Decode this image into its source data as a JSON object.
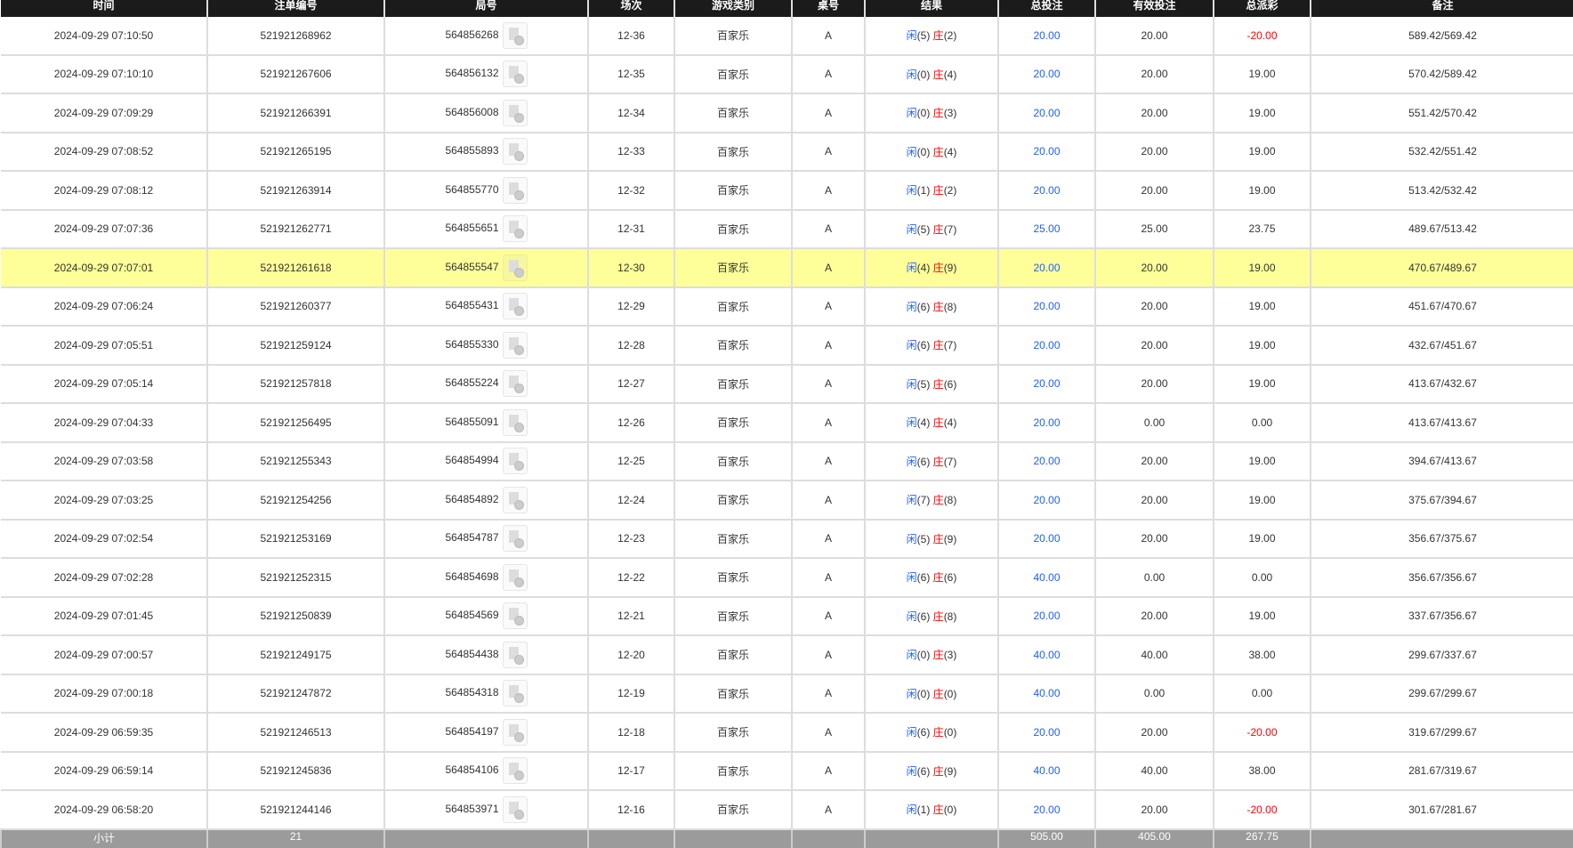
{
  "headers": [
    "时间",
    "注单编号",
    "局号",
    "场次",
    "游戏类别",
    "桌号",
    "结果",
    "总投注",
    "有效投注",
    "总派彩",
    "备注"
  ],
  "result_labels": {
    "player": "闲",
    "banker": "庄"
  },
  "colors": {
    "header_bg": "#1b1b1b",
    "highlight": "#ffff99",
    "blue": "#1f5ff5",
    "red": "#ff0000",
    "subtotal_bg": "#9b9b9b"
  },
  "rows": [
    {
      "time": "2024-09-29 07:10:50",
      "order": "521921268962",
      "game": "564856268",
      "round": "12-36",
      "type": "百家乐",
      "table": "A",
      "player": "(5)",
      "banker": "(2)",
      "bet": "20.00",
      "valid": "20.00",
      "payout": "-20.00",
      "note": "589.42/569.42"
    },
    {
      "time": "2024-09-29 07:10:10",
      "order": "521921267606",
      "game": "564856132",
      "round": "12-35",
      "type": "百家乐",
      "table": "A",
      "player": "(0)",
      "banker": "(4)",
      "bet": "20.00",
      "valid": "20.00",
      "payout": "19.00",
      "note": "570.42/589.42"
    },
    {
      "time": "2024-09-29 07:09:29",
      "order": "521921266391",
      "game": "564856008",
      "round": "12-34",
      "type": "百家乐",
      "table": "A",
      "player": "(0)",
      "banker": "(3)",
      "bet": "20.00",
      "valid": "20.00",
      "payout": "19.00",
      "note": "551.42/570.42"
    },
    {
      "time": "2024-09-29 07:08:52",
      "order": "521921265195",
      "game": "564855893",
      "round": "12-33",
      "type": "百家乐",
      "table": "A",
      "player": "(0)",
      "banker": "(4)",
      "bet": "20.00",
      "valid": "20.00",
      "payout": "19.00",
      "note": "532.42/551.42"
    },
    {
      "time": "2024-09-29 07:08:12",
      "order": "521921263914",
      "game": "564855770",
      "round": "12-32",
      "type": "百家乐",
      "table": "A",
      "player": "(1)",
      "banker": "(2)",
      "bet": "20.00",
      "valid": "20.00",
      "payout": "19.00",
      "note": "513.42/532.42"
    },
    {
      "time": "2024-09-29 07:07:36",
      "order": "521921262771",
      "game": "564855651",
      "round": "12-31",
      "type": "百家乐",
      "table": "A",
      "player": "(5)",
      "banker": "(7)",
      "bet": "25.00",
      "valid": "25.00",
      "payout": "23.75",
      "note": "489.67/513.42"
    },
    {
      "time": "2024-09-29 07:07:01",
      "order": "521921261618",
      "game": "564855547",
      "round": "12-30",
      "type": "百家乐",
      "table": "A",
      "player": "(4)",
      "banker": "(9)",
      "bet": "20.00",
      "valid": "20.00",
      "payout": "19.00",
      "note": "470.67/489.67",
      "highlighted": true
    },
    {
      "time": "2024-09-29 07:06:24",
      "order": "521921260377",
      "game": "564855431",
      "round": "12-29",
      "type": "百家乐",
      "table": "A",
      "player": "(6)",
      "banker": "(8)",
      "bet": "20.00",
      "valid": "20.00",
      "payout": "19.00",
      "note": "451.67/470.67"
    },
    {
      "time": "2024-09-29 07:05:51",
      "order": "521921259124",
      "game": "564855330",
      "round": "12-28",
      "type": "百家乐",
      "table": "A",
      "player": "(6)",
      "banker": "(7)",
      "bet": "20.00",
      "valid": "20.00",
      "payout": "19.00",
      "note": "432.67/451.67"
    },
    {
      "time": "2024-09-29 07:05:14",
      "order": "521921257818",
      "game": "564855224",
      "round": "12-27",
      "type": "百家乐",
      "table": "A",
      "player": "(5)",
      "banker": "(6)",
      "bet": "20.00",
      "valid": "20.00",
      "payout": "19.00",
      "note": "413.67/432.67"
    },
    {
      "time": "2024-09-29 07:04:33",
      "order": "521921256495",
      "game": "564855091",
      "round": "12-26",
      "type": "百家乐",
      "table": "A",
      "player": "(4)",
      "banker": "(4)",
      "bet": "20.00",
      "valid": "0.00",
      "payout": "0.00",
      "note": "413.67/413.67"
    },
    {
      "time": "2024-09-29 07:03:58",
      "order": "521921255343",
      "game": "564854994",
      "round": "12-25",
      "type": "百家乐",
      "table": "A",
      "player": "(6)",
      "banker": "(7)",
      "bet": "20.00",
      "valid": "20.00",
      "payout": "19.00",
      "note": "394.67/413.67"
    },
    {
      "time": "2024-09-29 07:03:25",
      "order": "521921254256",
      "game": "564854892",
      "round": "12-24",
      "type": "百家乐",
      "table": "A",
      "player": "(7)",
      "banker": "(8)",
      "bet": "20.00",
      "valid": "20.00",
      "payout": "19.00",
      "note": "375.67/394.67"
    },
    {
      "time": "2024-09-29 07:02:54",
      "order": "521921253169",
      "game": "564854787",
      "round": "12-23",
      "type": "百家乐",
      "table": "A",
      "player": "(5)",
      "banker": "(9)",
      "bet": "20.00",
      "valid": "20.00",
      "payout": "19.00",
      "note": "356.67/375.67"
    },
    {
      "time": "2024-09-29 07:02:28",
      "order": "521921252315",
      "game": "564854698",
      "round": "12-22",
      "type": "百家乐",
      "table": "A",
      "player": "(6)",
      "banker": "(6)",
      "bet": "40.00",
      "valid": "0.00",
      "payout": "0.00",
      "note": "356.67/356.67"
    },
    {
      "time": "2024-09-29 07:01:45",
      "order": "521921250839",
      "game": "564854569",
      "round": "12-21",
      "type": "百家乐",
      "table": "A",
      "player": "(6)",
      "banker": "(8)",
      "bet": "20.00",
      "valid": "20.00",
      "payout": "19.00",
      "note": "337.67/356.67"
    },
    {
      "time": "2024-09-29 07:00:57",
      "order": "521921249175",
      "game": "564854438",
      "round": "12-20",
      "type": "百家乐",
      "table": "A",
      "player": "(0)",
      "banker": "(3)",
      "bet": "40.00",
      "valid": "40.00",
      "payout": "38.00",
      "note": "299.67/337.67"
    },
    {
      "time": "2024-09-29 07:00:18",
      "order": "521921247872",
      "game": "564854318",
      "round": "12-19",
      "type": "百家乐",
      "table": "A",
      "player": "(0)",
      "banker": "(0)",
      "bet": "40.00",
      "valid": "0.00",
      "payout": "0.00",
      "note": "299.67/299.67"
    },
    {
      "time": "2024-09-29 06:59:35",
      "order": "521921246513",
      "game": "564854197",
      "round": "12-18",
      "type": "百家乐",
      "table": "A",
      "player": "(6)",
      "banker": "(0)",
      "bet": "20.00",
      "valid": "20.00",
      "payout": "-20.00",
      "note": "319.67/299.67"
    },
    {
      "time": "2024-09-29 06:59:14",
      "order": "521921245836",
      "game": "564854106",
      "round": "12-17",
      "type": "百家乐",
      "table": "A",
      "player": "(6)",
      "banker": "(9)",
      "bet": "40.00",
      "valid": "40.00",
      "payout": "38.00",
      "note": "281.67/319.67"
    },
    {
      "time": "2024-09-29 06:58:20",
      "order": "521921244146",
      "game": "564853971",
      "round": "12-16",
      "type": "百家乐",
      "table": "A",
      "player": "(1)",
      "banker": "(0)",
      "bet": "20.00",
      "valid": "20.00",
      "payout": "-20.00",
      "note": "301.67/281.67"
    }
  ],
  "subtotal": {
    "label": "小计",
    "count": "21",
    "bet": "505.00",
    "valid": "405.00",
    "payout": "267.75"
  }
}
